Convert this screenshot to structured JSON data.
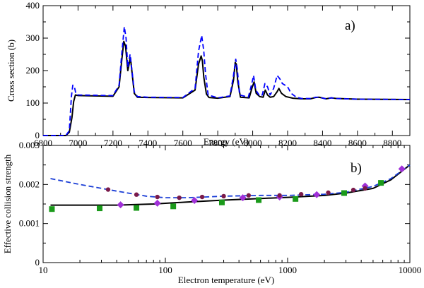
{
  "chart_data": [
    {
      "panel_label": "a)",
      "type": "line",
      "xlabel": "Energy (eV)",
      "ylabel": "Cross section (b)",
      "xlim": [
        6800,
        8900
      ],
      "ylim": [
        0,
        400
      ],
      "xticks": [
        6800,
        7000,
        7200,
        7400,
        7600,
        7800,
        8000,
        8200,
        8400,
        8600,
        8800
      ],
      "yticks": [
        0,
        100,
        200,
        300,
        400
      ],
      "series": [
        {
          "name": "solid",
          "color": "#000000",
          "dash": "solid",
          "x": [
            6800,
            6930,
            6950,
            6965,
            6975,
            6985,
            7000,
            7100,
            7200,
            7235,
            7250,
            7262,
            7272,
            7285,
            7300,
            7310,
            7322,
            7340,
            7400,
            7600,
            7670,
            7690,
            7705,
            7712,
            7720,
            7735,
            7750,
            7800,
            7870,
            7890,
            7900,
            7906,
            7915,
            7930,
            7980,
            7998,
            8008,
            8020,
            8040,
            8060,
            8072,
            8085,
            8100,
            8120,
            8140,
            8150,
            8165,
            8190,
            8230,
            8280,
            8330,
            8360,
            8380,
            8420,
            8450,
            8480,
            8600,
            8900
          ],
          "y": [
            0,
            0,
            10,
            55,
            105,
            125,
            123,
            122,
            121,
            150,
            230,
            290,
            275,
            200,
            240,
            190,
            130,
            118,
            117,
            116,
            140,
            220,
            245,
            230,
            180,
            128,
            117,
            115,
            120,
            170,
            225,
            220,
            165,
            118,
            116,
            150,
            165,
            130,
            120,
            118,
            140,
            125,
            118,
            120,
            135,
            145,
            130,
            120,
            115,
            113,
            113,
            117,
            118,
            113,
            116,
            114,
            112,
            111
          ]
        },
        {
          "name": "dashed",
          "color": "#0000ff",
          "dash": "dashed",
          "x": [
            6800,
            6930,
            6950,
            6962,
            6970,
            6980,
            6988,
            7000,
            7100,
            7200,
            7235,
            7250,
            7265,
            7275,
            7285,
            7298,
            7310,
            7322,
            7340,
            7400,
            7600,
            7670,
            7690,
            7708,
            7720,
            7730,
            7745,
            7800,
            7870,
            7890,
            7903,
            7912,
            7925,
            7975,
            7995,
            8005,
            8018,
            8040,
            8055,
            8070,
            8085,
            8100,
            8120,
            8140,
            8155,
            8170,
            8185,
            8200,
            8220,
            8250,
            8280,
            8330,
            8360,
            8380,
            8420,
            8450,
            8480,
            8600,
            8900
          ],
          "y": [
            0,
            0,
            15,
            120,
            155,
            148,
            128,
            125,
            124,
            123,
            155,
            250,
            335,
            300,
            210,
            250,
            195,
            135,
            120,
            118,
            117,
            145,
            260,
            308,
            260,
            190,
            125,
            116,
            122,
            185,
            235,
            205,
            125,
            118,
            160,
            185,
            140,
            122,
            125,
            160,
            150,
            125,
            145,
            185,
            175,
            160,
            155,
            150,
            130,
            118,
            114,
            114,
            118,
            118,
            113,
            116,
            114,
            112,
            111
          ]
        }
      ]
    },
    {
      "panel_label": "b)",
      "type": "line",
      "xscale": "log",
      "xlabel": "Electron temperature (eV)",
      "ylabel": "Effective collision strength",
      "xlim": [
        10,
        10000
      ],
      "ylim": [
        0,
        0.003
      ],
      "xticks": [
        10,
        100,
        1000,
        10000
      ],
      "xtick_labels": [
        "10",
        "100",
        "1000",
        "10000"
      ],
      "yticks": [
        0,
        0.001,
        0.002,
        0.003
      ],
      "ytick_labels": [
        "0",
        "0.001",
        "0.002",
        "0.003"
      ],
      "series": [
        {
          "name": "solid",
          "color": "#000000",
          "dash": "solid",
          "x": [
            11.5,
            20,
            40,
            80,
            150,
            300,
            600,
            1000,
            2000,
            3000,
            5000,
            7000,
            10000
          ],
          "y": [
            0.00147,
            0.00147,
            0.00147,
            0.0015,
            0.00155,
            0.0016,
            0.00164,
            0.00167,
            0.00172,
            0.00178,
            0.0019,
            0.00212,
            0.0025
          ]
        },
        {
          "name": "dashed",
          "color": "#1b3ed6",
          "dash": "dashed",
          "x": [
            11.5,
            20,
            40,
            70,
            100,
            150,
            300,
            600,
            1000,
            2000,
            3000,
            5000,
            7000,
            10000
          ],
          "y": [
            0.00215,
            0.002,
            0.00183,
            0.0017,
            0.00166,
            0.00166,
            0.0017,
            0.00172,
            0.00172,
            0.00175,
            0.0018,
            0.00195,
            0.00215,
            0.0025
          ]
        },
        {
          "name": "green squares",
          "color": "#1a9a1a",
          "marker": "square",
          "x": [
            11.8,
            29,
            58,
            116,
            290,
            580,
            1160,
            2900,
            5800
          ],
          "y": [
            0.00137,
            0.00139,
            0.0014,
            0.00144,
            0.00154,
            0.0016,
            0.00163,
            0.00178,
            0.00204
          ]
        },
        {
          "name": "purple diamonds",
          "color": "#a030d8",
          "marker": "diamond",
          "x": [
            43,
            86,
            173,
            430,
            860,
            1730,
            4300,
            8600
          ],
          "y": [
            0.00148,
            0.00152,
            0.00159,
            0.00166,
            0.00168,
            0.00174,
            0.00196,
            0.0024
          ]
        },
        {
          "name": "maroon circles",
          "color": "#7a1a4a",
          "marker": "circle",
          "x": [
            34,
            58,
            86,
            130,
            200,
            300,
            480,
            860,
            1290,
            2150,
            3450,
            4300
          ],
          "y": [
            0.00187,
            0.00174,
            0.00168,
            0.00166,
            0.00168,
            0.0017,
            0.00172,
            0.00172,
            0.00175,
            0.00179,
            0.00186,
            0.0019
          ]
        }
      ]
    }
  ]
}
